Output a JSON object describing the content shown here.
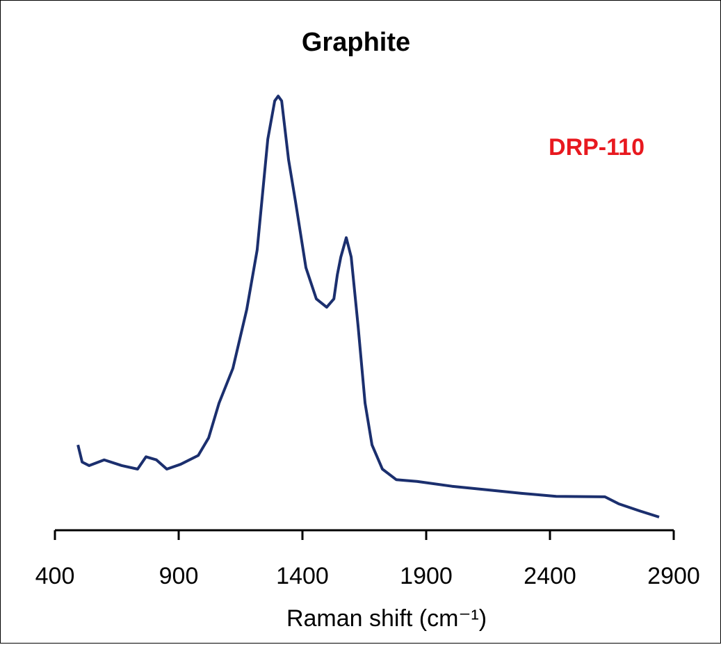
{
  "chart_data": {
    "type": "line",
    "title": "Graphite",
    "annotation": "DRP-110",
    "annotation_color": "#e8191f",
    "x_label": "Raman shift (cm⁻¹)",
    "x": [
      493,
      510,
      538,
      599,
      670,
      734,
      768,
      810,
      852,
      908,
      979,
      1021,
      1063,
      1119,
      1175,
      1217,
      1260,
      1288,
      1302,
      1316,
      1344,
      1372,
      1414,
      1456,
      1498,
      1527,
      1541,
      1555,
      1577,
      1597,
      1625,
      1653,
      1681,
      1723,
      1779,
      1863,
      2004,
      2144,
      2285,
      2425,
      2622,
      2678,
      2762,
      2841
    ],
    "series": [
      {
        "name": "DRP-110",
        "color": "#1b2f6e",
        "values": [
          19.4,
          15.5,
          14.7,
          16,
          14.7,
          13.9,
          16.7,
          16,
          13.9,
          15,
          17,
          21,
          28.9,
          36.8,
          50.2,
          63.7,
          88.9,
          97.6,
          98.7,
          97.6,
          84.2,
          74.7,
          59.7,
          52.6,
          50.7,
          52.6,
          58.1,
          62.1,
          66.5,
          62.1,
          46.3,
          28.9,
          19.4,
          13.9,
          11.5,
          11.1,
          10,
          9.2,
          8.4,
          7.7,
          7.6,
          6,
          4.4,
          3
        ]
      }
    ],
    "xlim": [
      400,
      2900
    ],
    "xticks": [
      400,
      900,
      1400,
      1900,
      2400,
      2900
    ],
    "ylim": [
      0,
      100
    ],
    "grid": false
  }
}
